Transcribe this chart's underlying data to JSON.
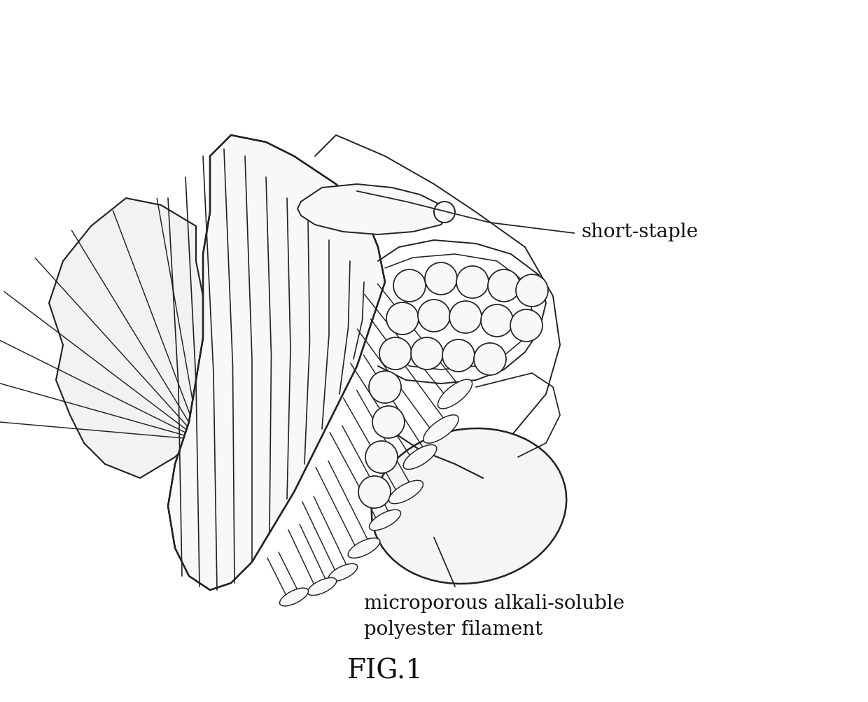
{
  "background_color": "#ffffff",
  "line_color": "#222222",
  "line_width": 1.4,
  "fig_label": "FIG.1",
  "label_short_staple": "short-staple",
  "label_filament": "microporous alkali-soluble\npolyester filament",
  "label_fontsize": 20,
  "fig_label_fontsize": 28,
  "annotation_color": "#111111",
  "figsize": [
    12.4,
    10.04
  ],
  "dpi": 100,
  "xlim": [
    0,
    12.4
  ],
  "ylim": [
    0,
    10.04
  ]
}
